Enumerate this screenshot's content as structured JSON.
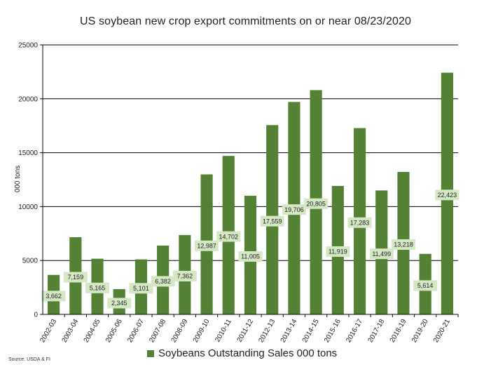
{
  "chart_data": {
    "type": "bar",
    "title": "US soybean new crop export commitments on or near 08/23/2020",
    "ylabel": "000 tons",
    "xlabel": "",
    "ylim": [
      0,
      25000
    ],
    "yticks": [
      0,
      5000,
      10000,
      15000,
      20000,
      25000
    ],
    "grid": true,
    "legend_position": "bottom",
    "categories": [
      "2002-03",
      "2003-04",
      "2004-05",
      "2005-06",
      "2006-07",
      "2007-08",
      "2008-09",
      "2009-10",
      "2010-11",
      "2011-12",
      "2012-13",
      "2013-14",
      "2014-15",
      "2015-16",
      "2016-17",
      "2017-18",
      "2018-19",
      "2019-20",
      "2020-21"
    ],
    "series": [
      {
        "name": "Soybeans Outstanding Sales 000 tons",
        "values": [
          3662,
          7159,
          5165,
          2345,
          5101,
          6382,
          7362,
          12987,
          14702,
          11005,
          17559,
          19706,
          20805,
          11919,
          17283,
          11499,
          13218,
          5614,
          22423
        ],
        "labels": [
          "3,662",
          "7,159",
          "5,165",
          "2,345",
          "5,101",
          "6,382",
          "7,362",
          "12,987",
          "14,702",
          "11,005",
          "17,559",
          "19,706",
          "20,805",
          "11,919",
          "17,283",
          "11,499",
          "13,218",
          "5,614",
          "22,423"
        ]
      }
    ],
    "source": "Source: USDA & FI"
  },
  "colors": {
    "bar": "#548235",
    "label_bg": "#d4e8c4",
    "grid": "#000000"
  }
}
